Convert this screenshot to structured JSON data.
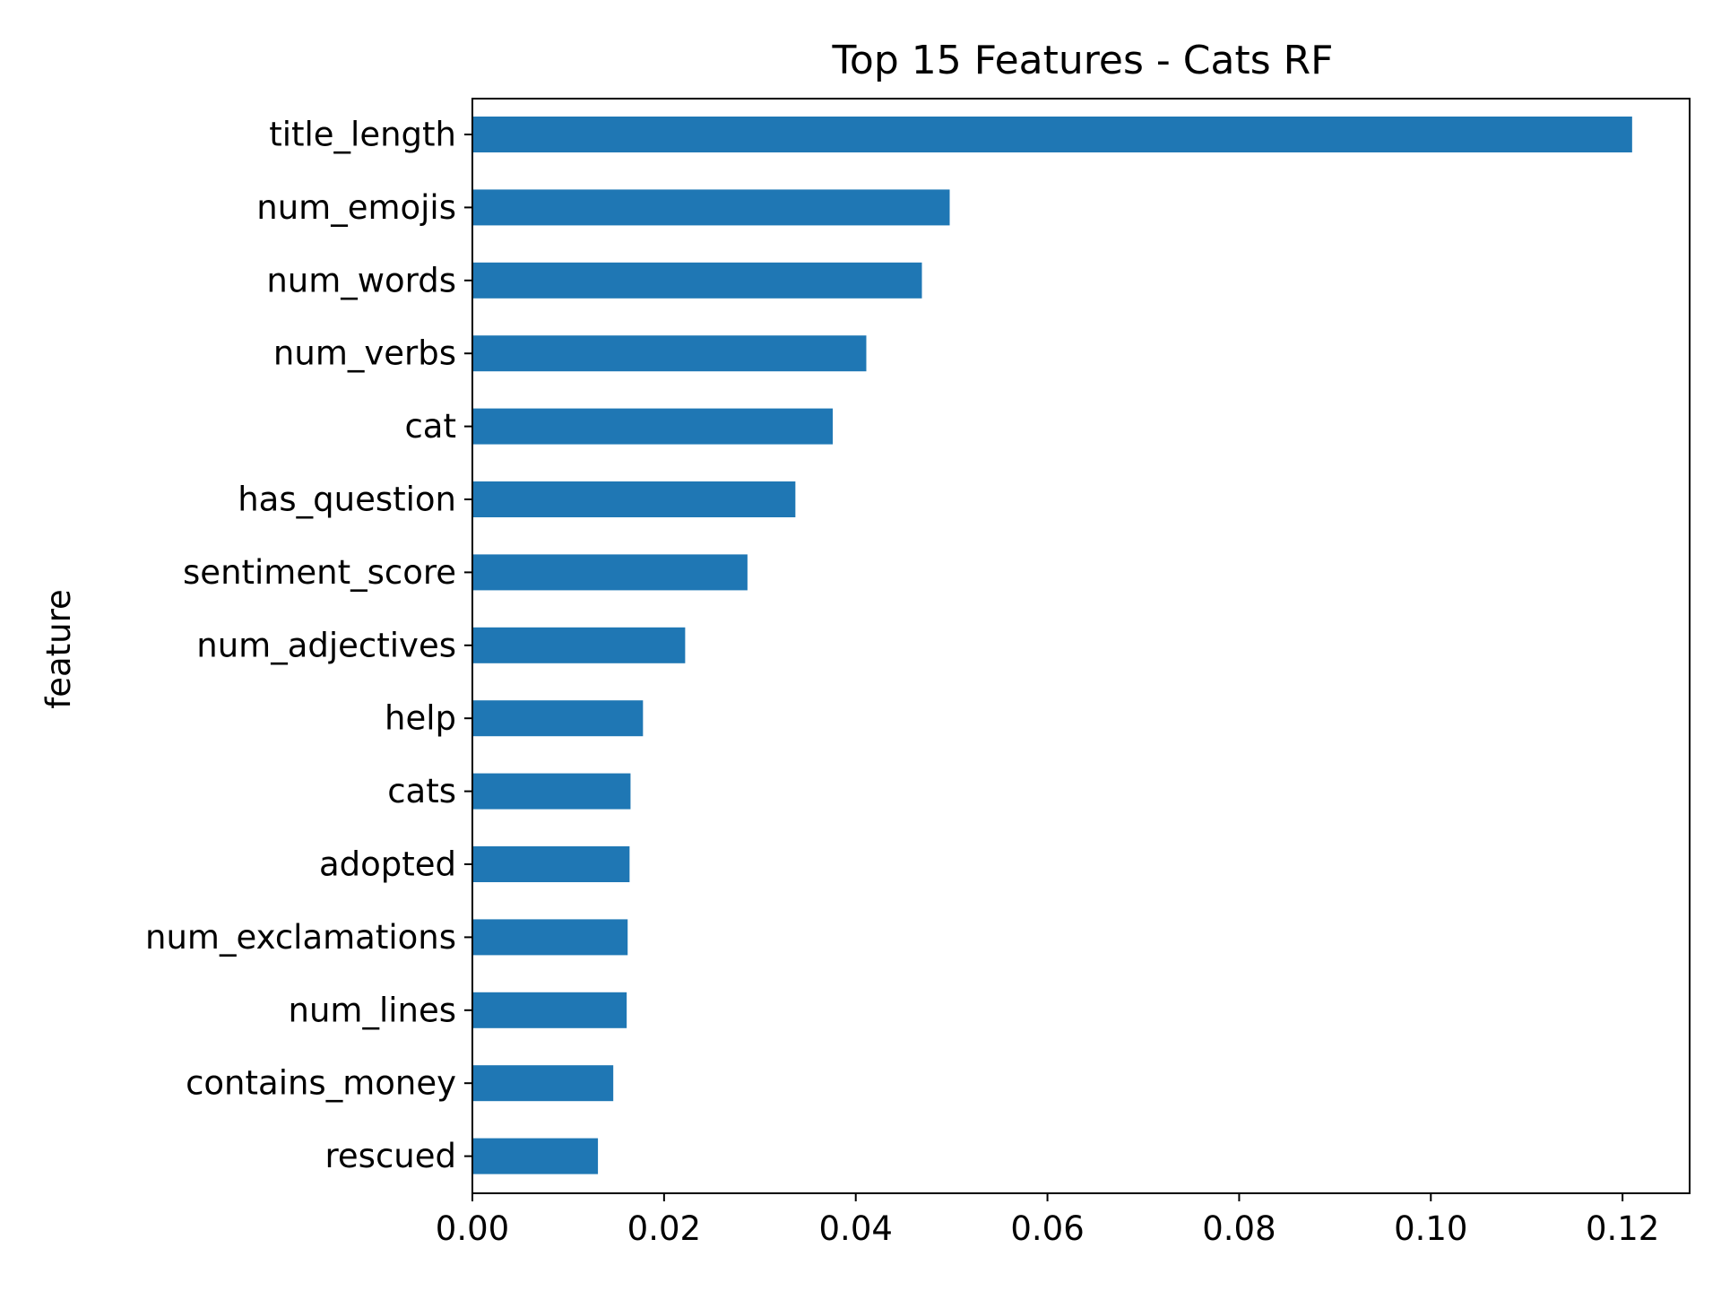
{
  "chart_data": {
    "type": "bar",
    "orientation": "horizontal",
    "title": "Top 15 Features - Cats RF",
    "xlabel": "",
    "ylabel": "feature",
    "categories": [
      "title_length",
      "num_emojis",
      "num_words",
      "num_verbs",
      "cat",
      "has_question",
      "sentiment_score",
      "num_adjectives",
      "help",
      "cats",
      "adopted",
      "num_exclamations",
      "num_lines",
      "contains_money",
      "rescued"
    ],
    "values": [
      0.121,
      0.0498,
      0.0469,
      0.0411,
      0.0376,
      0.0337,
      0.0287,
      0.0222,
      0.0178,
      0.0165,
      0.0164,
      0.0162,
      0.0161,
      0.0147,
      0.0131
    ],
    "xticks": [
      0.0,
      0.02,
      0.04,
      0.06,
      0.08,
      0.1,
      0.12
    ],
    "xtick_labels": [
      "0.00",
      "0.02",
      "0.04",
      "0.06",
      "0.08",
      "0.10",
      "0.12"
    ],
    "xlim": [
      0,
      0.127
    ],
    "grid": false,
    "legend": "none",
    "bar_color": "#1f77b4"
  }
}
